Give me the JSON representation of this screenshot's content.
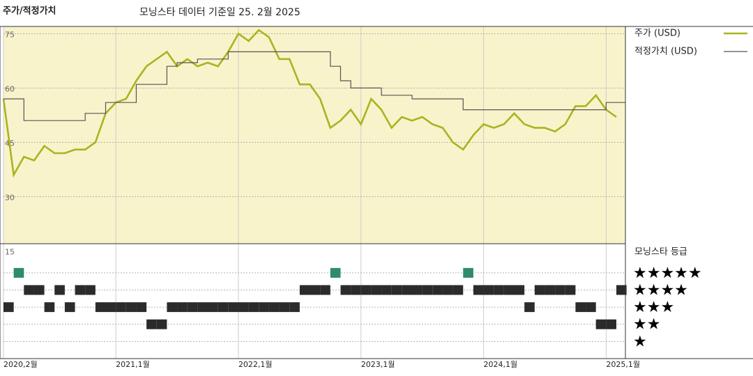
{
  "chart_data": [
    {
      "type": "line",
      "title": "주가/적정가치",
      "subtitle": "모닝스타 데이터 기준일 25. 2월 2025",
      "x": [
        "2020-02",
        "2020-03",
        "2020-04",
        "2020-05",
        "2020-06",
        "2020-07",
        "2020-08",
        "2020-09",
        "2020-10",
        "2020-11",
        "2020-12",
        "2021-01",
        "2021-02",
        "2021-03",
        "2021-04",
        "2021-05",
        "2021-06",
        "2021-07",
        "2021-08",
        "2021-09",
        "2021-10",
        "2021-11",
        "2021-12",
        "2022-01",
        "2022-02",
        "2022-03",
        "2022-04",
        "2022-05",
        "2022-06",
        "2022-07",
        "2022-08",
        "2022-09",
        "2022-10",
        "2022-11",
        "2022-12",
        "2023-01",
        "2023-02",
        "2023-03",
        "2023-04",
        "2023-05",
        "2023-06",
        "2023-07",
        "2023-08",
        "2023-09",
        "2023-10",
        "2023-11",
        "2023-12",
        "2024-01",
        "2024-02",
        "2024-03",
        "2024-04",
        "2024-05",
        "2024-06",
        "2024-07",
        "2024-08",
        "2024-09",
        "2024-10",
        "2024-11",
        "2024-12",
        "2025-01",
        "2025-02"
      ],
      "series": [
        {
          "name": "주가 (USD)",
          "color": "#a9b41f",
          "values": [
            57,
            36,
            41,
            40,
            44,
            42,
            42,
            43,
            43,
            45,
            53,
            56,
            57,
            62,
            66,
            68,
            70,
            66,
            68,
            66,
            67,
            66,
            70,
            75,
            73,
            76,
            74,
            68,
            68,
            61,
            61,
            57,
            49,
            51,
            54,
            50,
            57,
            54,
            49,
            52,
            51,
            52,
            50,
            49,
            45,
            43,
            47,
            50,
            49,
            50,
            53,
            50,
            49,
            49,
            48,
            50,
            55,
            55,
            58,
            54,
            52
          ]
        },
        {
          "name": "적정가치 (USD)",
          "color": "#555555",
          "step": true,
          "values": [
            57,
            57,
            51,
            51,
            51,
            51,
            51,
            51,
            53,
            53,
            56,
            56,
            56,
            61,
            61,
            61,
            66,
            67,
            67,
            68,
            68,
            68,
            70,
            70,
            70,
            70,
            70,
            70,
            70,
            70,
            70,
            70,
            66,
            62,
            60,
            60,
            60,
            58,
            58,
            58,
            57,
            57,
            57,
            57,
            57,
            54,
            54,
            54,
            54,
            54,
            54,
            54,
            54,
            54,
            54,
            54,
            54,
            54,
            54,
            56,
            56
          ]
        }
      ],
      "ylim": [
        15,
        77
      ],
      "yticks": [
        15,
        30,
        45,
        60,
        75
      ],
      "grid": true,
      "xticks": [
        {
          "value": "2020-02",
          "label": "2020,2월"
        },
        {
          "value": "2021-01",
          "label": "2021,1월"
        },
        {
          "value": "2022-01",
          "label": "2022,1월"
        },
        {
          "value": "2023-01",
          "label": "2023,1월"
        },
        {
          "value": "2024-01",
          "label": "2024,1월"
        },
        {
          "value": "2025-01",
          "label": "2025,1월"
        }
      ],
      "background": "#f8f3cb"
    },
    {
      "type": "rating",
      "title": "모닝스타 등급",
      "values": [
        3,
        5,
        4,
        4,
        3,
        4,
        3,
        4,
        4,
        3,
        3,
        3,
        3,
        3,
        2,
        2,
        3,
        3,
        3,
        3,
        3,
        3,
        3,
        3,
        3,
        3,
        3,
        3,
        3,
        4,
        4,
        4,
        5,
        4,
        4,
        4,
        4,
        4,
        4,
        4,
        4,
        4,
        4,
        4,
        4,
        5,
        4,
        4,
        4,
        4,
        4,
        3,
        4,
        4,
        4,
        4,
        3,
        3,
        2,
        2,
        4
      ],
      "ylim": [
        0,
        6.7
      ],
      "yticks": [
        {
          "value": 5,
          "label": "★★★★★"
        },
        {
          "value": 4,
          "label": "★★★★"
        },
        {
          "value": 3,
          "label": "★★★"
        },
        {
          "value": 2,
          "label": "★★"
        },
        {
          "value": 1,
          "label": "★"
        }
      ],
      "highlight_value": 5,
      "highlight_color": "#2f8a6e",
      "color": "#2b2b2b"
    }
  ]
}
